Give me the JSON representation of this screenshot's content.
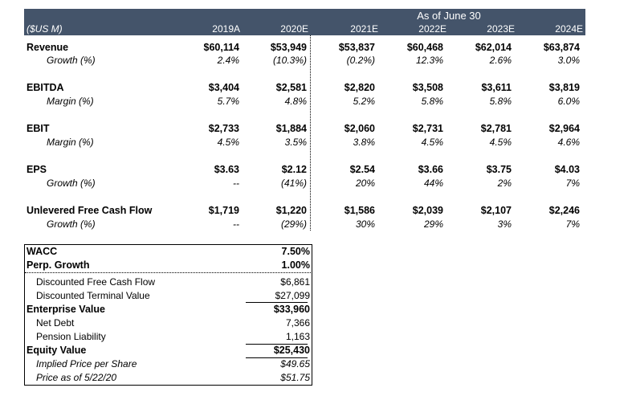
{
  "header": {
    "period_label": "As of June 30",
    "units_label": "($US M)",
    "columns": [
      "2019A",
      "2020E",
      "2021E",
      "2022E",
      "2023E",
      "2024E"
    ]
  },
  "rows": {
    "revenue": {
      "label": "Revenue",
      "values": [
        "$60,114",
        "$53,949",
        "$53,837",
        "$60,468",
        "$62,014",
        "$63,874"
      ],
      "sub_label": "Growth (%)",
      "sub_values": [
        "2.4%",
        "(10.3%)",
        "(0.2%)",
        "12.3%",
        "2.6%",
        "3.0%"
      ]
    },
    "ebitda": {
      "label": "EBITDA",
      "values": [
        "$3,404",
        "$2,581",
        "$2,820",
        "$3,508",
        "$3,611",
        "$3,819"
      ],
      "sub_label": "Margin (%)",
      "sub_values": [
        "5.7%",
        "4.8%",
        "5.2%",
        "5.8%",
        "5.8%",
        "6.0%"
      ]
    },
    "ebit": {
      "label": "EBIT",
      "values": [
        "$2,733",
        "$1,884",
        "$2,060",
        "$2,731",
        "$2,781",
        "$2,964"
      ],
      "sub_label": "Margin (%)",
      "sub_values": [
        "4.5%",
        "3.5%",
        "3.8%",
        "4.5%",
        "4.5%",
        "4.6%"
      ]
    },
    "eps": {
      "label": "EPS",
      "values": [
        "$3.63",
        "$2.12",
        "$2.54",
        "$3.66",
        "$3.75",
        "$4.03"
      ],
      "sub_label": "Growth (%)",
      "sub_values": [
        "--",
        "(41%)",
        "20%",
        "44%",
        "2%",
        "7%"
      ]
    },
    "ufcf": {
      "label": "Unlevered Free Cash Flow",
      "values": [
        "$1,719",
        "$1,220",
        "$1,586",
        "$2,039",
        "$2,107",
        "$2,246"
      ],
      "sub_label": "Growth (%)",
      "sub_values": [
        "--",
        "(29%)",
        "30%",
        "29%",
        "3%",
        "7%"
      ]
    }
  },
  "valuation": {
    "wacc": {
      "label": "WACC",
      "value": "7.50%"
    },
    "perp_growth": {
      "label": "Perp. Growth",
      "value": "1.00%"
    },
    "disc_fcf": {
      "label": "Discounted Free Cash Flow",
      "value": "$6,861"
    },
    "disc_tv": {
      "label": "Discounted Terminal Value",
      "value": "$27,099"
    },
    "ev": {
      "label": "Enterprise Value",
      "value": "$33,960"
    },
    "net_debt": {
      "label": "Net Debt",
      "value": "7,366"
    },
    "pension": {
      "label": "Pension Liability",
      "value": "1,163"
    },
    "equity": {
      "label": "Equity Value",
      "value": "$25,430"
    },
    "implied_price": {
      "label": "Implied Price per Share",
      "value": "$49.65"
    },
    "price_asof": {
      "label": "Price as of 5/22/20",
      "value": "$51.75"
    }
  }
}
